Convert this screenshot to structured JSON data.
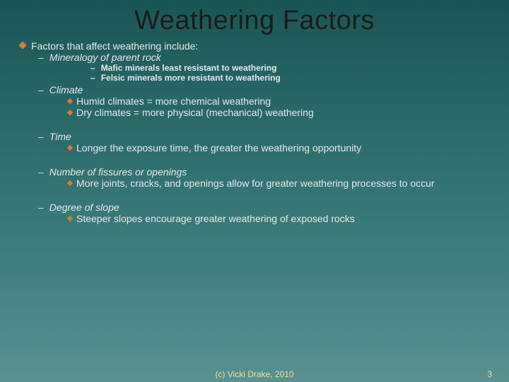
{
  "title": {
    "text": "Weathering Factors",
    "fontsize": 38,
    "color": "#1a1a1a"
  },
  "intro": "Factors that affect weathering include:",
  "factors": [
    {
      "name": "Mineralogy of parent rock",
      "sub_bold": [
        "Mafic minerals least resistant to weathering",
        "Felsic minerals more resistant to weathering"
      ]
    },
    {
      "name": "Climate",
      "sub_diamond": [
        "Humid climates  = more chemical weathering",
        "Dry climates  = more physical (mechanical) weathering"
      ]
    },
    {
      "name": "Time",
      "sub_diamond": [
        "Longer the exposure time, the greater the weathering opportunity"
      ]
    },
    {
      "name": "Number of fissures or openings",
      "sub_diamond": [
        "More joints, cracks, and openings allow for greater weathering processes to occur"
      ]
    },
    {
      "name": "Degree of slope",
      "sub_diamond": [
        "Steeper slopes encourage greater weathering of exposed rocks"
      ]
    }
  ],
  "footer": {
    "copyright": "(c) Vicki Drake, 2010",
    "page": "3"
  },
  "colors": {
    "accent": "#d97a3a",
    "text": "#e8e8e8",
    "footer": "#f0e0a0"
  }
}
